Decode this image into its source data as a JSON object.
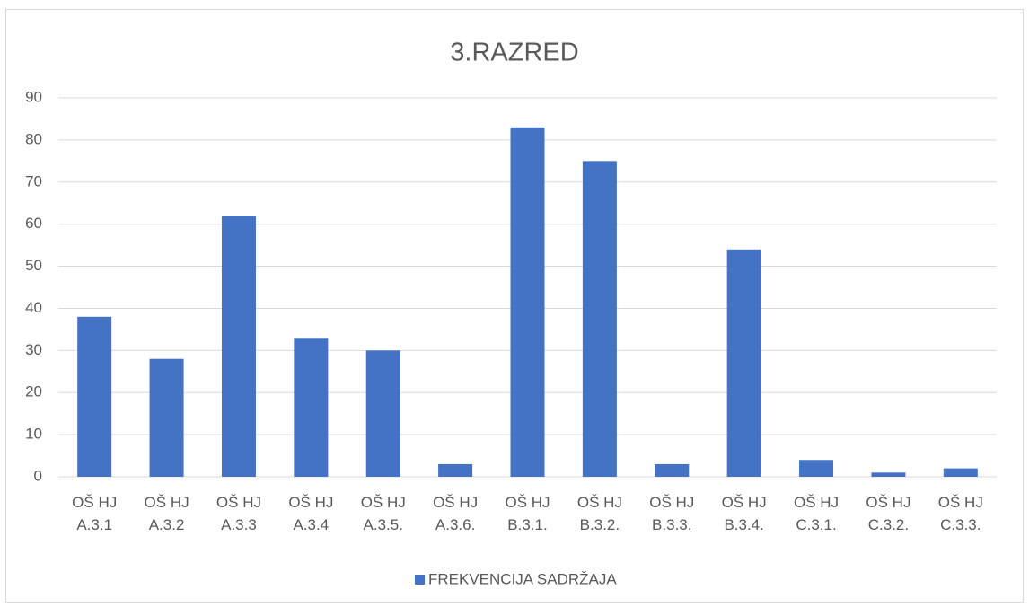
{
  "chart_data": {
    "type": "bar",
    "title": "3.RAZRED",
    "categories": [
      "OŠ HJ A.3.1",
      "OŠ HJ A.3.2",
      "OŠ HJ A.3.3",
      "OŠ HJ A.3.4",
      "OŠ HJ A.3.5.",
      "OŠ HJ A.3.6.",
      "OŠ HJ B.3.1.",
      "OŠ HJ B.3.2.",
      "OŠ HJ B.3.3.",
      "OŠ HJ B.3.4.",
      "OŠ HJ C.3.1.",
      "OŠ HJ C.3.2.",
      "OŠ HJ C.3.3."
    ],
    "series": [
      {
        "name": "FREKVENCIJA SADRŽAJA",
        "color": "#4472c4",
        "values": [
          38,
          28,
          62,
          33,
          30,
          3,
          83,
          75,
          3,
          54,
          4,
          1,
          2
        ]
      }
    ],
    "ylim": [
      0,
      90
    ],
    "yticks": [
      0,
      10,
      20,
      30,
      40,
      50,
      60,
      70,
      80,
      90
    ],
    "grid": true,
    "legend": "bottom"
  }
}
